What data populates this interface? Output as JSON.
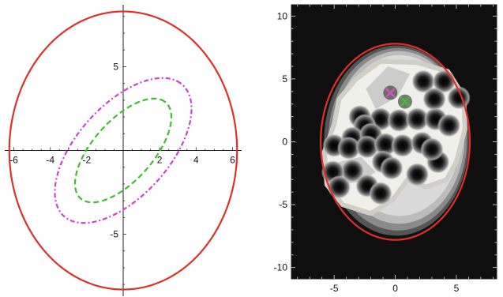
{
  "chart_data": [
    {
      "type": "line",
      "title": "",
      "xlabel": "",
      "ylabel": "",
      "xlim": [
        -6.5,
        6.5
      ],
      "ylim": [
        -8.7,
        8.7
      ],
      "grid": false,
      "legend": "none",
      "x_ticks": [
        "-6",
        "-4",
        "-2",
        "2",
        "4",
        "6"
      ],
      "x_tick_values": [
        -6,
        -4,
        -2,
        2,
        4,
        6
      ],
      "y_ticks": [
        "5",
        "-5"
      ],
      "y_tick_values": [
        5,
        -5
      ],
      "series": [
        {
          "style": "solid",
          "color": "#e0302a",
          "shape": "ellipse",
          "center": [
            0,
            0
          ],
          "semi_axes": [
            6.25,
            8.3
          ],
          "rotation_deg": 0
        },
        {
          "style": "dash-dot",
          "color": "#cc44cc",
          "shape": "ellipse",
          "center": [
            0,
            0
          ],
          "semi_axes": [
            5.1,
            2.6
          ],
          "rotation_deg": 52
        },
        {
          "style": "dashed",
          "color": "#44bb33",
          "shape": "ellipse",
          "center": [
            0,
            0
          ],
          "semi_axes": [
            3.7,
            1.7
          ],
          "rotation_deg": 52
        }
      ]
    },
    {
      "type": "heatmap",
      "title": "",
      "xlabel": "",
      "ylabel": "",
      "xlim": [
        -8.5,
        8.3
      ],
      "ylim": [
        -10.9,
        10.9
      ],
      "grid": false,
      "legend": "none",
      "x_ticks": [
        "-5",
        "0",
        "5"
      ],
      "x_tick_values": [
        -5,
        0,
        5
      ],
      "y_ticks": [
        "10",
        "5",
        "0",
        "-5",
        "-10"
      ],
      "y_tick_values": [
        10,
        5,
        0,
        -5,
        -10
      ],
      "ellipse": {
        "color": "#e0302a",
        "center": [
          0,
          0
        ],
        "semi_axes": [
          6.1,
          7.8
        ]
      },
      "contour_colors": [
        "#111111",
        "#555555",
        "#8a8a8a",
        "#bcbcbc",
        "#dadada",
        "#f0f0ea"
      ],
      "holes": [
        [
          2.3,
          4.8
        ],
        [
          4.0,
          4.8
        ],
        [
          3.2,
          3.4
        ],
        [
          5.2,
          3.5
        ],
        [
          -1.2,
          1.8
        ],
        [
          0.3,
          1.7
        ],
        [
          1.8,
          1.8
        ],
        [
          3.3,
          1.8
        ],
        [
          4.4,
          1.3
        ],
        [
          -2.9,
          2.0
        ],
        [
          -2.5,
          1.3
        ],
        [
          -3.5,
          0.3
        ],
        [
          -2.0,
          0.6
        ],
        [
          -5.0,
          -0.3
        ],
        [
          -3.8,
          -0.5
        ],
        [
          -2.3,
          -0.4
        ],
        [
          -0.8,
          -0.2
        ],
        [
          0.6,
          -0.3
        ],
        [
          2.2,
          -0.1
        ],
        [
          -1.0,
          -1.6
        ],
        [
          -3.5,
          -2.3
        ],
        [
          -5.1,
          -2.4
        ],
        [
          -0.3,
          -2.1
        ],
        [
          1.8,
          -2.6
        ],
        [
          3.5,
          -1.6
        ],
        [
          -2.3,
          -3.5
        ],
        [
          -4.6,
          -3.6
        ],
        [
          -1.2,
          -4.1
        ],
        [
          3.0,
          -0.6
        ]
      ],
      "markers": [
        {
          "symbol": "×",
          "color": "#cc55bb",
          "x": -0.4,
          "y": 3.9
        },
        {
          "symbol": "×",
          "color": "#44bb33",
          "x": 0.8,
          "y": 3.2
        }
      ]
    }
  ]
}
